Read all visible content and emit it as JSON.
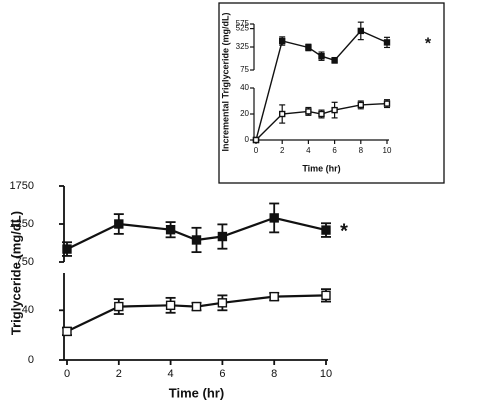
{
  "chart_data": [
    {
      "type": "line",
      "panel": "inset",
      "xlabel": "Time (hr)",
      "ylabel": "Incremental Triglyceride (mg/dL)",
      "x_ticks": [
        "0",
        "2",
        "4",
        "6",
        "8",
        "10"
      ],
      "xlim": [
        0,
        10
      ],
      "y_broken_axis": true,
      "upper_segment": {
        "ylim": [
          75,
          575
        ],
        "ticks": [
          "75",
          "325",
          "525",
          "575"
        ]
      },
      "lower_segment": {
        "ylim": [
          0,
          40
        ],
        "ticks": [
          "0",
          "20",
          "40"
        ]
      },
      "grid": false,
      "annotation": "*",
      "series": [
        {
          "marker": "filled-square",
          "x": [
            0,
            2,
            4,
            5,
            6,
            8,
            10
          ],
          "y": [
            0,
            390,
            320,
            225,
            180,
            500,
            375
          ],
          "err": [
            0,
            45,
            35,
            45,
            30,
            95,
            55
          ]
        },
        {
          "marker": "open-square",
          "x": [
            0,
            2,
            4,
            5,
            6,
            8,
            10
          ],
          "y": [
            0,
            20,
            22,
            20,
            23,
            27,
            28
          ],
          "err": [
            0,
            7,
            3,
            3,
            6,
            3,
            3
          ]
        }
      ]
    },
    {
      "type": "line",
      "panel": "main",
      "xlabel": "Time (hr)",
      "ylabel": "Triglyceride (mg/dL)",
      "x_ticks": [
        "0",
        "2",
        "4",
        "6",
        "8",
        "10"
      ],
      "xlim": [
        0,
        10
      ],
      "y_broken_axis": true,
      "upper_segment": {
        "ylim": [
          750,
          1750
        ],
        "ticks": [
          "750",
          "1250",
          "1750"
        ]
      },
      "lower_segment": {
        "ylim": [
          0,
          70
        ],
        "ticks": [
          "0",
          "40"
        ]
      },
      "grid": false,
      "annotation": "*",
      "series": [
        {
          "marker": "filled-square",
          "x": [
            0,
            2,
            4,
            5,
            6,
            8,
            10
          ],
          "y": [
            920,
            1250,
            1175,
            1040,
            1085,
            1330,
            1170
          ],
          "err": [
            90,
            130,
            100,
            160,
            160,
            190,
            90
          ]
        },
        {
          "marker": "open-square",
          "x": [
            0,
            2,
            4,
            5,
            6,
            8,
            10
          ],
          "y": [
            23,
            43,
            44,
            43,
            46,
            51,
            52
          ],
          "err": [
            3,
            6,
            6,
            3,
            6,
            3,
            5
          ]
        }
      ]
    }
  ]
}
